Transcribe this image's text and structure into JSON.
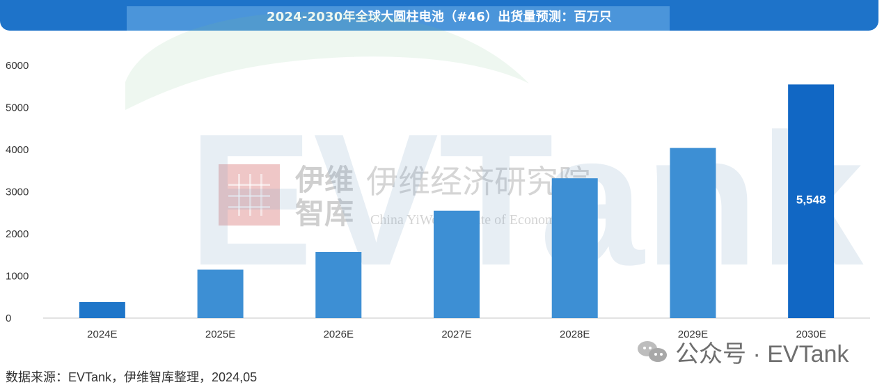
{
  "header": {
    "title": "2024-2030年全球大圆柱电池（#46）出货量预测：百万只"
  },
  "footer": {
    "source": "数据来源：EVTank，伊维智库整理，2024,05"
  },
  "watermark": {
    "brand_text": "公众号 · EVTank",
    "big_text": "EVTank",
    "logo_cn_1": "伊维",
    "logo_cn_2": "智库",
    "logo_cn_large": "伊维经济研究院",
    "logo_en": "China YiWei Institute of Economics",
    "icon": "wechat-icon"
  },
  "colors": {
    "header": "#1e73c9",
    "header_light": "#4b95da",
    "bar_default": "#3d8fd4",
    "bar_2024": "#1f76c9",
    "bar_2030": "#1167c4",
    "axis": "#d9d9d9",
    "text": "#333333"
  },
  "chart_data": {
    "type": "bar",
    "title": "2024-2030年全球大圆柱电池（#46）出货量预测：百万只",
    "categories": [
      "2024E",
      "2025E",
      "2026E",
      "2027E",
      "2028E",
      "2029E",
      "2030E"
    ],
    "values": [
      380,
      1150,
      1570,
      2550,
      3320,
      4040,
      5548
    ],
    "data_labels": [
      "",
      "",
      "",
      "",
      "",
      "",
      "5,548"
    ],
    "xlabel": "",
    "ylabel": "",
    "ylim": [
      0,
      6000
    ],
    "yticks": [
      0,
      1000,
      2000,
      3000,
      4000,
      5000,
      6000
    ],
    "grid": false,
    "legend": "none"
  }
}
